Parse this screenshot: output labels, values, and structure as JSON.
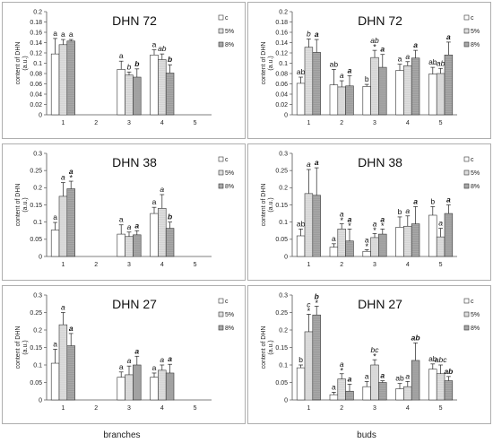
{
  "footer": {
    "left_label": "branches",
    "right_label": "buds"
  },
  "legend": {
    "c": "c",
    "p5": "5%",
    "p8": "8%"
  },
  "fills": {
    "c": "#ffffff",
    "p5": "#dedede",
    "p8": "#a8a8a8",
    "axis": "#555555"
  },
  "chart_data": [
    {
      "type": "bar",
      "title": "DHN 72",
      "ylabel": "content of DHN\n(a.u.)",
      "categories": [
        "1",
        "2",
        "3",
        "4",
        "5"
      ],
      "y_ticks": [
        "0",
        "0.02",
        "0.04",
        "0.06",
        "0.08",
        "0.1",
        "0.12",
        "0.14",
        "0.16",
        "0.18",
        "0.2"
      ],
      "ylim": [
        0,
        0.2
      ],
      "series": [
        {
          "name": "c",
          "values": [
            0.118,
            null,
            0.088,
            0.116,
            null
          ],
          "err": [
            0.03,
            null,
            0.016,
            0.01,
            null
          ]
        },
        {
          "name": "5%",
          "values": [
            0.136,
            null,
            0.077,
            0.107,
            null
          ],
          "err": [
            0.01,
            null,
            0.006,
            0.011,
            null
          ]
        },
        {
          "name": "8%",
          "values": [
            0.143,
            null,
            0.073,
            0.081,
            null
          ],
          "err": [
            0.003,
            null,
            0.016,
            0.016,
            null
          ]
        }
      ],
      "letters": [
        [
          "a",
          "a",
          "a"
        ],
        [
          "",
          "",
          ""
        ],
        [
          "a",
          "b",
          "b"
        ],
        [
          "a",
          "ab",
          "b"
        ],
        [
          "",
          "",
          ""
        ]
      ],
      "letter_styles": [
        [
          "n",
          "n",
          "n"
        ],
        [
          "n",
          "n",
          "n"
        ],
        [
          "n",
          "i",
          "bi"
        ],
        [
          "n",
          "i",
          "bi"
        ],
        [
          "n",
          "n",
          "n"
        ]
      ],
      "asterisks": [
        [
          0,
          0,
          0
        ],
        [
          0,
          0,
          0
        ],
        [
          0,
          0,
          0
        ],
        [
          0,
          0,
          0
        ],
        [
          0,
          0,
          0
        ]
      ]
    },
    {
      "type": "bar",
      "title": "DHN 72",
      "ylabel": "content of DHN\n(a.u.)",
      "categories": [
        "1",
        "2",
        "3",
        "4",
        "5"
      ],
      "y_ticks": [
        "0",
        "0.02",
        "0.04",
        "0.06",
        "0.08",
        "0.1",
        "0.12",
        "0.14",
        "0.16",
        "0.18",
        "0.2"
      ],
      "ylim": [
        0,
        0.2
      ],
      "series": [
        {
          "name": "c",
          "values": [
            0.061,
            0.058,
            0.055,
            0.086,
            0.079
          ],
          "err": [
            0.012,
            0.03,
            0.004,
            0.012,
            0.013
          ]
        },
        {
          "name": "5%",
          "values": [
            0.131,
            0.054,
            0.111,
            0.095,
            0.08
          ],
          "err": [
            0.016,
            0.012,
            0.014,
            0.008,
            0.01
          ]
        },
        {
          "name": "8%",
          "values": [
            0.121,
            0.056,
            0.092,
            0.11,
            0.116
          ],
          "err": [
            0.025,
            0.02,
            0.025,
            0.015,
            0.025
          ]
        }
      ],
      "letters": [
        [
          "ab",
          "b",
          "a"
        ],
        [
          "ab",
          "a",
          "a"
        ],
        [
          "b",
          "ab",
          "a"
        ],
        [
          "a",
          "a",
          "a"
        ],
        [
          "ab",
          "ab",
          "a"
        ]
      ],
      "letter_styles": [
        [
          "n",
          "i",
          "bi"
        ],
        [
          "n",
          "i",
          "bi"
        ],
        [
          "n",
          "i",
          "bi"
        ],
        [
          "n",
          "i",
          "bi"
        ],
        [
          "n",
          "i",
          "bi"
        ]
      ],
      "asterisks": [
        [
          0,
          0,
          0
        ],
        [
          0,
          0,
          0
        ],
        [
          0,
          1,
          0
        ],
        [
          0,
          0,
          0
        ],
        [
          0,
          0,
          0
        ]
      ]
    },
    {
      "type": "bar",
      "title": "DHN 38",
      "ylabel": "content of DHN\n(a.u.)",
      "categories": [
        "1",
        "2",
        "3",
        "4",
        "5"
      ],
      "y_ticks": [
        "0",
        "0.05",
        "0.1",
        "0.15",
        "0.2",
        "0.25",
        "0.3"
      ],
      "ylim": [
        0,
        0.3
      ],
      "series": [
        {
          "name": "c",
          "values": [
            0.077,
            null,
            0.065,
            0.125,
            null
          ],
          "err": [
            0.022,
            null,
            0.027,
            0.018,
            null
          ]
        },
        {
          "name": "5%",
          "values": [
            0.175,
            null,
            0.058,
            0.14,
            null
          ],
          "err": [
            0.04,
            null,
            0.013,
            0.04,
            null
          ]
        },
        {
          "name": "8%",
          "values": [
            0.197,
            null,
            0.063,
            0.082,
            null
          ],
          "err": [
            0.022,
            null,
            0.012,
            0.018,
            null
          ]
        }
      ],
      "letters": [
        [
          "a",
          "a",
          "a"
        ],
        [
          "",
          "",
          ""
        ],
        [
          "a",
          "a",
          "a"
        ],
        [
          "a",
          "a",
          "b"
        ],
        [
          "",
          "",
          ""
        ]
      ],
      "letter_styles": [
        [
          "n",
          "i",
          "bi"
        ],
        [
          "n",
          "n",
          "n"
        ],
        [
          "n",
          "i",
          "bi"
        ],
        [
          "n",
          "i",
          "bi"
        ],
        [
          "n",
          "n",
          "n"
        ]
      ],
      "asterisks": [
        [
          0,
          0,
          1
        ],
        [
          0,
          0,
          0
        ],
        [
          0,
          0,
          0
        ],
        [
          0,
          0,
          0
        ],
        [
          0,
          0,
          0
        ]
      ]
    },
    {
      "type": "bar",
      "title": "DHN 38",
      "ylabel": "content of DHN\n(a.u.)",
      "categories": [
        "1",
        "2",
        "3",
        "4",
        "5"
      ],
      "y_ticks": [
        "0",
        "0.05",
        "0.1",
        "0.15",
        "0.2",
        "0.25",
        "0.3"
      ],
      "ylim": [
        0,
        0.3
      ],
      "series": [
        {
          "name": "c",
          "values": [
            0.06,
            0.027,
            0.015,
            0.085,
            0.12
          ],
          "err": [
            0.02,
            0.01,
            0.005,
            0.03,
            0.025
          ]
        },
        {
          "name": "5%",
          "values": [
            0.183,
            0.08,
            0.055,
            0.088,
            0.057
          ],
          "err": [
            0.07,
            0.015,
            0.012,
            0.03,
            0.025
          ]
        },
        {
          "name": "8%",
          "values": [
            0.178,
            0.045,
            0.065,
            0.095,
            0.125
          ],
          "err": [
            0.08,
            0.035,
            0.015,
            0.05,
            0.025
          ]
        }
      ],
      "letters": [
        [
          "ab",
          "a",
          "a"
        ],
        [
          "a",
          "a",
          "a"
        ],
        [
          "a",
          "a",
          "a"
        ],
        [
          "b",
          "a",
          "a"
        ],
        [
          "b",
          "a",
          "a"
        ]
      ],
      "letter_styles": [
        [
          "n",
          "i",
          "bi"
        ],
        [
          "n",
          "i",
          "bi"
        ],
        [
          "n",
          "i",
          "bi"
        ],
        [
          "n",
          "i",
          "bi"
        ],
        [
          "n",
          "i",
          "bi"
        ]
      ],
      "asterisks": [
        [
          0,
          0,
          0
        ],
        [
          0,
          1,
          1
        ],
        [
          1,
          1,
          1
        ],
        [
          0,
          0,
          0
        ],
        [
          0,
          0,
          0
        ]
      ]
    },
    {
      "type": "bar",
      "title": "DHN 27",
      "ylabel": "content of DHN\n(a.u.)",
      "categories": [
        "1",
        "2",
        "3",
        "4",
        "5"
      ],
      "y_ticks": [
        "0",
        "0.05",
        "0.1",
        "0.15",
        "0.2",
        "0.25",
        "0.3"
      ],
      "ylim": [
        0,
        0.3
      ],
      "series": [
        {
          "name": "c",
          "values": [
            0.105,
            null,
            0.065,
            0.065,
            null
          ],
          "err": [
            0.04,
            null,
            0.015,
            0.012,
            null
          ]
        },
        {
          "name": "5%",
          "values": [
            0.215,
            null,
            0.072,
            0.085,
            null
          ],
          "err": [
            0.035,
            null,
            0.025,
            0.015,
            null
          ]
        },
        {
          "name": "8%",
          "values": [
            0.155,
            null,
            0.1,
            0.077,
            null
          ],
          "err": [
            0.035,
            null,
            0.025,
            0.025,
            null
          ]
        }
      ],
      "letters": [
        [
          "a",
          "a",
          "a"
        ],
        [
          "",
          "",
          ""
        ],
        [
          "a",
          "a",
          "a"
        ],
        [
          "a",
          "a",
          "a"
        ],
        [
          "",
          "",
          ""
        ]
      ],
      "letter_styles": [
        [
          "n",
          "i",
          "bi"
        ],
        [
          "n",
          "n",
          "n"
        ],
        [
          "n",
          "i",
          "bi"
        ],
        [
          "n",
          "i",
          "bi"
        ],
        [
          "n",
          "n",
          "n"
        ]
      ],
      "asterisks": [
        [
          0,
          0,
          0
        ],
        [
          0,
          0,
          0
        ],
        [
          0,
          0,
          0
        ],
        [
          0,
          0,
          0
        ],
        [
          0,
          0,
          0
        ]
      ]
    },
    {
      "type": "bar",
      "title": "DHN 27",
      "ylabel": "content of DHN\n(a.u.)",
      "categories": [
        "1",
        "2",
        "3",
        "4",
        "5"
      ],
      "y_ticks": [
        "0",
        "0.05",
        "0.1",
        "0.15",
        "0.2",
        "0.25",
        "0.3"
      ],
      "ylim": [
        0,
        0.3
      ],
      "series": [
        {
          "name": "c",
          "values": [
            0.092,
            0.015,
            0.038,
            0.032,
            0.088
          ],
          "err": [
            0.008,
            0.007,
            0.015,
            0.015,
            0.015
          ]
        },
        {
          "name": "5%",
          "values": [
            0.195,
            0.06,
            0.1,
            0.038,
            0.075
          ],
          "err": [
            0.05,
            0.015,
            0.015,
            0.015,
            0.025
          ]
        },
        {
          "name": "8%",
          "values": [
            0.243,
            0.025,
            0.05,
            0.113,
            0.055
          ],
          "err": [
            0.025,
            0.02,
            0.005,
            0.05,
            0.012
          ]
        }
      ],
      "letters": [
        [
          "b",
          "c",
          "b"
        ],
        [
          "a",
          "a",
          "a"
        ],
        [
          "a",
          "bc",
          "a"
        ],
        [
          "ab",
          "a",
          "ab"
        ],
        [
          "ab",
          "abc",
          "ab"
        ]
      ],
      "letter_styles": [
        [
          "n",
          "i",
          "bi"
        ],
        [
          "n",
          "i",
          "bi"
        ],
        [
          "n",
          "i",
          "bi"
        ],
        [
          "n",
          "i",
          "bi"
        ],
        [
          "n",
          "i",
          "bi"
        ]
      ],
      "asterisks": [
        [
          0,
          1,
          1
        ],
        [
          0,
          1,
          0
        ],
        [
          0,
          1,
          0
        ],
        [
          0,
          0,
          0
        ],
        [
          0,
          0,
          0
        ]
      ]
    }
  ]
}
